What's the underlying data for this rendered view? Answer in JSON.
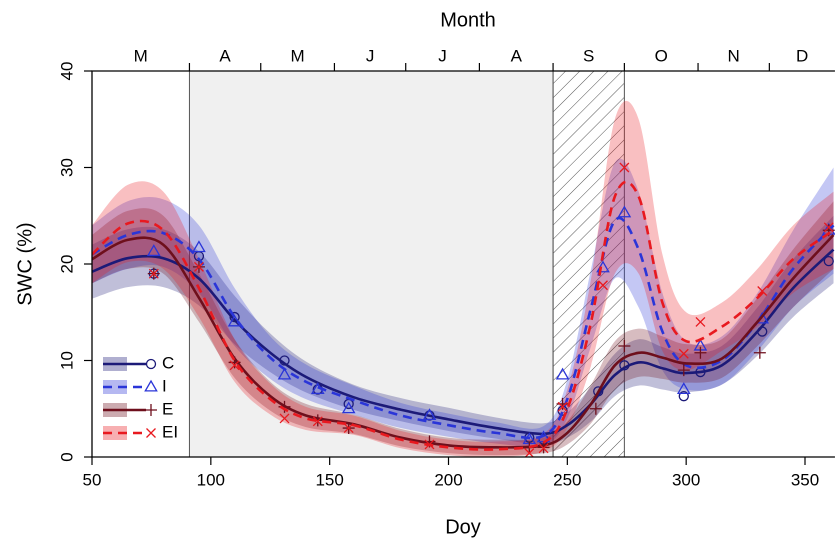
{
  "chart_data": {
    "type": "line",
    "x_label": "Doy",
    "y_label": "SWC (%)",
    "top_label": "Month",
    "xlim": [
      50,
      362.6
    ],
    "ylim": [
      0,
      40
    ],
    "xticks": [
      50,
      100,
      150,
      200,
      250,
      300,
      350
    ],
    "yticks": [
      0,
      10,
      20,
      30,
      40
    ],
    "months": [
      "M",
      "A",
      "M",
      "J",
      "J",
      "A",
      "S",
      "O",
      "N",
      "D"
    ],
    "month_boundaries": [
      91,
      121,
      152,
      182,
      213,
      244,
      274,
      305,
      335
    ],
    "regions": [
      {
        "x": [
          91,
          244
        ],
        "style": "gray"
      },
      {
        "x": [
          244,
          274
        ],
        "style": "hatch"
      }
    ],
    "legend": "lower left",
    "curve_x": [
      50,
      65,
      80,
      95,
      110,
      125,
      140,
      160,
      180,
      200,
      220,
      240,
      250,
      260,
      270,
      280,
      290,
      300,
      315,
      330,
      345,
      362
    ],
    "series": [
      {
        "name": "C",
        "color": "#1c1a78",
        "dash": false,
        "marker": "circle",
        "values": [
          19.2,
          20.6,
          20.6,
          18.5,
          14.2,
          10.8,
          8.3,
          6.2,
          4.9,
          3.9,
          3.0,
          2.4,
          3.3,
          5.5,
          8.5,
          9.8,
          9.2,
          8.7,
          9.5,
          13,
          17.5,
          21.5
        ],
        "band_lower": [
          16.4,
          17.6,
          17.6,
          15.7,
          11.7,
          8.8,
          6.7,
          4.9,
          3.7,
          2.7,
          1.9,
          1.3,
          2.0,
          3.7,
          6.3,
          7.4,
          7.0,
          6.7,
          7.5,
          10.5,
          14.5,
          18.0
        ],
        "band_upper": [
          22.0,
          23.6,
          23.6,
          21.3,
          16.7,
          12.8,
          9.9,
          7.5,
          6.1,
          5.1,
          4.1,
          3.5,
          4.6,
          7.3,
          10.7,
          12.2,
          11.4,
          10.7,
          11.5,
          15.5,
          20.5,
          25.0
        ],
        "points_x": [
          76,
          95,
          110,
          131,
          145,
          158,
          192,
          234,
          240,
          248,
          263,
          274,
          299,
          306,
          332,
          360
        ],
        "points_y": [
          19,
          20.8,
          14.5,
          10,
          7,
          5.5,
          4.3,
          2,
          1.8,
          4.8,
          6.8,
          9.5,
          6.3,
          8.8,
          13,
          20.3
        ]
      },
      {
        "name": "I",
        "color": "#2a35d8",
        "dash": true,
        "marker": "triangle",
        "values": [
          21,
          23,
          23.2,
          20.5,
          14.5,
          10.3,
          7.8,
          5.9,
          4.3,
          3.3,
          2.5,
          2.2,
          6,
          15.5,
          24.5,
          21.5,
          13,
          9.5,
          10,
          14,
          19.5,
          24
        ],
        "band_lower": [
          18.0,
          19.5,
          19.7,
          17.0,
          11.5,
          8.1,
          6.0,
          4.4,
          3.0,
          2.1,
          1.4,
          1.2,
          4.0,
          11.5,
          18.5,
          15.5,
          9.0,
          7.0,
          7.5,
          11.0,
          15.5,
          19.0
        ],
        "band_upper": [
          24.0,
          26.5,
          26.7,
          24.0,
          17.5,
          12.5,
          9.6,
          7.4,
          5.6,
          4.5,
          3.6,
          3.2,
          8.0,
          19.5,
          30.5,
          27.5,
          17.0,
          12.0,
          12.5,
          17.0,
          23.5,
          30.0
        ],
        "points_x": [
          76,
          95,
          110,
          131,
          145,
          158,
          192,
          234,
          240,
          248,
          265,
          274,
          299,
          306,
          332,
          360
        ],
        "points_y": [
          21.3,
          21.7,
          14,
          8.5,
          7,
          5,
          4.3,
          1.8,
          2,
          8.5,
          19.6,
          25.3,
          7,
          11.5,
          14.3,
          23.5
        ]
      },
      {
        "name": "E",
        "color": "#6e0f1c",
        "dash": false,
        "marker": "plus",
        "values": [
          20.5,
          22.5,
          22,
          16.5,
          10.2,
          6.3,
          4.3,
          3.4,
          2.0,
          1.2,
          1.0,
          1.2,
          2.5,
          5.5,
          9.5,
          10.8,
          10.3,
          9.7,
          10.2,
          14,
          18.5,
          23
        ],
        "band_lower": [
          18.0,
          19.5,
          19.0,
          14.0,
          8.2,
          4.8,
          3.1,
          2.4,
          1.1,
          0.4,
          0.2,
          0.4,
          1.3,
          3.5,
          7.0,
          8.3,
          8.1,
          7.7,
          8.2,
          11.5,
          15.5,
          19.5
        ],
        "band_upper": [
          23.0,
          25.5,
          25.0,
          19.0,
          12.2,
          7.8,
          5.5,
          4.4,
          2.9,
          2.0,
          1.8,
          2.0,
          3.7,
          7.5,
          12.0,
          13.3,
          12.5,
          11.7,
          12.2,
          16.5,
          21.5,
          26.5
        ],
        "points_x": [
          76,
          95,
          110,
          131,
          145,
          158,
          192,
          234,
          240,
          248,
          262,
          274,
          299,
          306,
          331,
          360
        ],
        "points_y": [
          19,
          19.7,
          9.8,
          5.2,
          3.8,
          3,
          1.6,
          1,
          1,
          5.5,
          5,
          11.5,
          9,
          10.8,
          10.8,
          23.5
        ]
      },
      {
        "name": "EI",
        "color": "#e8191f",
        "dash": true,
        "marker": "cross",
        "values": [
          21,
          24.2,
          23.5,
          17.5,
          10,
          6,
          4,
          3.3,
          1.8,
          1.0,
          0.8,
          1.5,
          5,
          14,
          27,
          27,
          16,
          12,
          13.5,
          16.5,
          20.5,
          23.5
        ],
        "band_lower": [
          18.0,
          20.2,
          19.5,
          14.5,
          7.8,
          4.4,
          2.8,
          2.3,
          0.9,
          0.2,
          0.0,
          0.6,
          3.0,
          9.5,
          19.0,
          19.0,
          11.0,
          9.0,
          11.0,
          13.5,
          17.0,
          19.5
        ],
        "band_upper": [
          24.0,
          28.2,
          27.5,
          20.5,
          12.2,
          7.6,
          5.2,
          4.3,
          2.7,
          1.8,
          1.6,
          2.4,
          7.0,
          18.5,
          35.0,
          35.0,
          21.0,
          15.0,
          16.0,
          19.5,
          24.0,
          27.5
        ],
        "points_x": [
          76,
          95,
          110,
          131,
          145,
          158,
          192,
          234,
          240,
          248,
          265,
          274,
          299,
          306,
          332,
          360
        ],
        "points_y": [
          19,
          19.7,
          9.5,
          4,
          3.7,
          3,
          1.3,
          0.4,
          0.9,
          5.2,
          17.8,
          30,
          10.7,
          14,
          17.2,
          23.8
        ]
      }
    ]
  }
}
